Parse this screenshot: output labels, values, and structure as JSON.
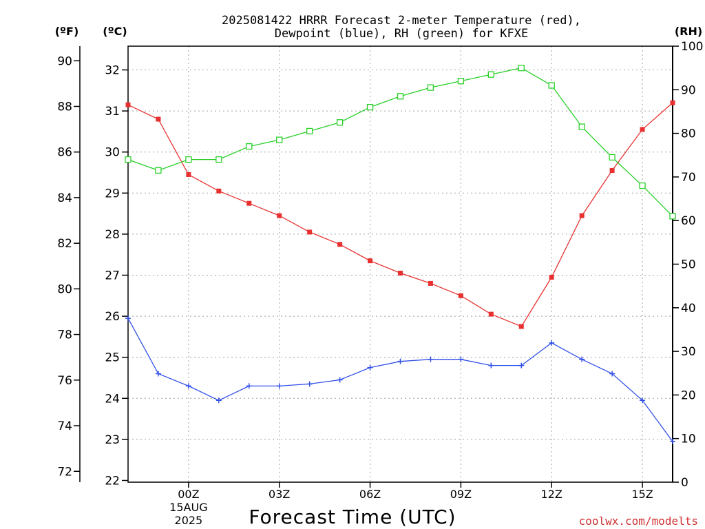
{
  "chart_data": {
    "type": "line",
    "title_line1": "2025081422 HRRR Forecast 2-meter Temperature (red),",
    "title_line2": "Dewpoint (blue), RH (green) for KFXE",
    "xlabel": "Forecast Time (UTC)",
    "watermark": "coolwx.com/modelts",
    "units": {
      "fahrenheit": "(ºF)",
      "celsius": "(ºC)",
      "rh": "(RH)"
    },
    "x": [
      22,
      23,
      24,
      25,
      26,
      27,
      28,
      29,
      30,
      31,
      32,
      33,
      34,
      35,
      36,
      37,
      38,
      39,
      40
    ],
    "x_ticks": [
      {
        "hour": 24,
        "label": "00Z",
        "sub1": "15AUG",
        "sub2": "2025"
      },
      {
        "hour": 27,
        "label": "03Z"
      },
      {
        "hour": 30,
        "label": "06Z"
      },
      {
        "hour": 33,
        "label": "09Z"
      },
      {
        "hour": 36,
        "label": "12Z"
      },
      {
        "hour": 39,
        "label": "15Z"
      }
    ],
    "xlim": [
      22,
      40
    ],
    "ylim_c": [
      22,
      32.6
    ],
    "ylim_rh": [
      0,
      100
    ],
    "celsius_ticks": [
      22,
      23,
      24,
      25,
      26,
      27,
      28,
      29,
      30,
      31,
      32
    ],
    "fahrenheit_ticks": [
      72,
      74,
      76,
      78,
      80,
      82,
      84,
      86,
      88,
      90
    ],
    "rh_ticks": [
      0,
      10,
      20,
      30,
      40,
      50,
      60,
      70,
      80,
      90,
      100
    ],
    "grid": true,
    "series": [
      {
        "name": "Temperature",
        "axis": "celsius",
        "color": "#e83030",
        "marker": "filled-square",
        "values": [
          31.15,
          30.8,
          29.45,
          29.05,
          28.75,
          28.45,
          28.05,
          27.75,
          27.35,
          27.05,
          26.8,
          26.5,
          26.05,
          25.75,
          26.95,
          28.45,
          29.55,
          30.55,
          31.2
        ]
      },
      {
        "name": "Dewpoint",
        "axis": "celsius",
        "color": "#3050e8",
        "marker": "plus",
        "values": [
          25.95,
          24.6,
          24.3,
          23.95,
          24.3,
          24.3,
          24.35,
          24.45,
          24.75,
          24.9,
          24.95,
          24.95,
          24.8,
          24.8,
          25.35,
          24.95,
          24.6,
          23.95,
          22.95
        ]
      },
      {
        "name": "RH",
        "axis": "rh",
        "color": "#28d028",
        "marker": "open-square",
        "values": [
          74,
          71.5,
          74,
          74,
          77,
          78.5,
          80.5,
          82.5,
          86,
          88.5,
          90.5,
          92,
          93.5,
          95,
          91,
          81.5,
          74.5,
          68,
          61
        ]
      }
    ]
  }
}
